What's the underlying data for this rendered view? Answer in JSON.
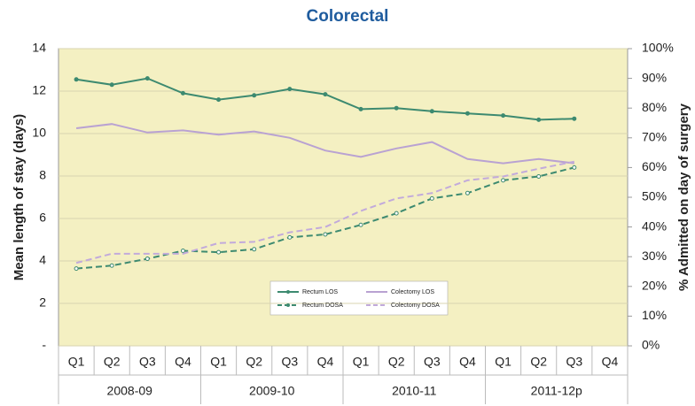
{
  "chart_data": {
    "type": "line",
    "title": "Colorectal",
    "y_label": "Mean length of stay (days)",
    "y2_label": "% Admitted on day of surgery",
    "categories": [
      "Q1",
      "Q2",
      "Q3",
      "Q4",
      "Q1",
      "Q2",
      "Q3",
      "Q4",
      "Q1",
      "Q2",
      "Q3",
      "Q4",
      "Q1",
      "Q2",
      "Q3",
      "Q4"
    ],
    "year_labels": [
      "2008-09",
      "2009-10",
      "2010-11",
      "2011-12p"
    ],
    "ylim": [
      0,
      14
    ],
    "yticks": [
      {
        "value": 0,
        "label": "-"
      },
      2,
      4,
      6,
      8,
      10,
      12,
      14
    ],
    "y2lim": [
      0,
      100
    ],
    "y2ticks": [
      {
        "value": 0,
        "label": "0%"
      },
      {
        "value": 10,
        "label": "10%"
      },
      {
        "value": 20,
        "label": "20%"
      },
      {
        "value": 30,
        "label": "30%"
      },
      {
        "value": 40,
        "label": "40%"
      },
      {
        "value": 50,
        "label": "50%"
      },
      {
        "value": 60,
        "label": "60%"
      },
      {
        "value": 70,
        "label": "70%"
      },
      {
        "value": 80,
        "label": "80%"
      },
      {
        "value": 90,
        "label": "90%"
      },
      {
        "value": 100,
        "label": "100%"
      }
    ],
    "grid": true,
    "series": [
      {
        "name": "Rectum LOS",
        "color": "#3d8a70",
        "dash": false,
        "marker": true,
        "axis": "y",
        "values": [
          12.55,
          12.3,
          12.6,
          11.9,
          11.6,
          11.8,
          12.1,
          11.85,
          11.15,
          11.2,
          11.05,
          10.95,
          10.85,
          10.65,
          10.7,
          null
        ]
      },
      {
        "name": "Colectomy LOS",
        "color": "#b9a2d2",
        "dash": false,
        "marker": false,
        "axis": "y",
        "values": [
          10.25,
          10.45,
          10.05,
          10.15,
          9.95,
          10.1,
          9.8,
          9.2,
          8.9,
          9.3,
          9.6,
          8.8,
          8.6,
          8.8,
          8.6,
          null
        ]
      },
      {
        "name": "Rectum DOSA",
        "color": "#3d8a70",
        "dash": true,
        "marker": true,
        "axis": "y2",
        "values": [
          26,
          27,
          29.3,
          32,
          31.5,
          32.5,
          36.5,
          37.5,
          40.7,
          44.6,
          49.6,
          51.4,
          55.7,
          57,
          60,
          null
        ]
      },
      {
        "name": "Colectomy DOSA",
        "color": "#c2aadb",
        "dash": true,
        "marker": false,
        "axis": "y2",
        "values": [
          27.9,
          31,
          31,
          31,
          34.6,
          35,
          38.2,
          40,
          45.4,
          49.6,
          51.4,
          55.7,
          57,
          59.6,
          62,
          null
        ]
      }
    ]
  }
}
